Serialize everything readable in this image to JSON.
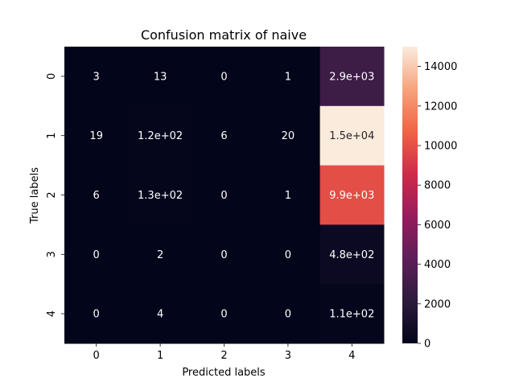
{
  "chart_data": {
    "type": "heatmap",
    "title": "Confusion matrix of naive",
    "xlabel": "Predicted labels",
    "ylabel": "True labels",
    "x_categories": [
      "0",
      "1",
      "2",
      "3",
      "4"
    ],
    "y_categories": [
      "0",
      "1",
      "2",
      "3",
      "4"
    ],
    "values": [
      [
        3,
        13,
        0,
        1,
        2900
      ],
      [
        19,
        120,
        6,
        20,
        15000
      ],
      [
        6,
        130,
        0,
        1,
        9900
      ],
      [
        0,
        2,
        0,
        0,
        480
      ],
      [
        0,
        4,
        0,
        0,
        110
      ]
    ],
    "cell_labels": [
      [
        "3",
        "13",
        "0",
        "1",
        "2.9e+03"
      ],
      [
        "19",
        "1.2e+02",
        "6",
        "20",
        "1.5e+04"
      ],
      [
        "6",
        "1.3e+02",
        "0",
        "1",
        "9.9e+03"
      ],
      [
        "0",
        "2",
        "0",
        "0",
        "4.8e+02"
      ],
      [
        "0",
        "4",
        "0",
        "0",
        "1.1e+02"
      ]
    ],
    "colorbar": {
      "min": 0,
      "max": 15000,
      "ticks": [
        0,
        2000,
        4000,
        6000,
        8000,
        10000,
        12000,
        14000
      ],
      "tick_labels": [
        "0",
        "2000",
        "4000",
        "6000",
        "8000",
        "10000",
        "12000",
        "14000"
      ],
      "colormap": "rocket",
      "colors": [
        "#03051a",
        "#2b1b3c",
        "#5d1f59",
        "#961c5c",
        "#cf2b4a",
        "#ef6445",
        "#f6a47c",
        "#faebdd"
      ]
    }
  }
}
